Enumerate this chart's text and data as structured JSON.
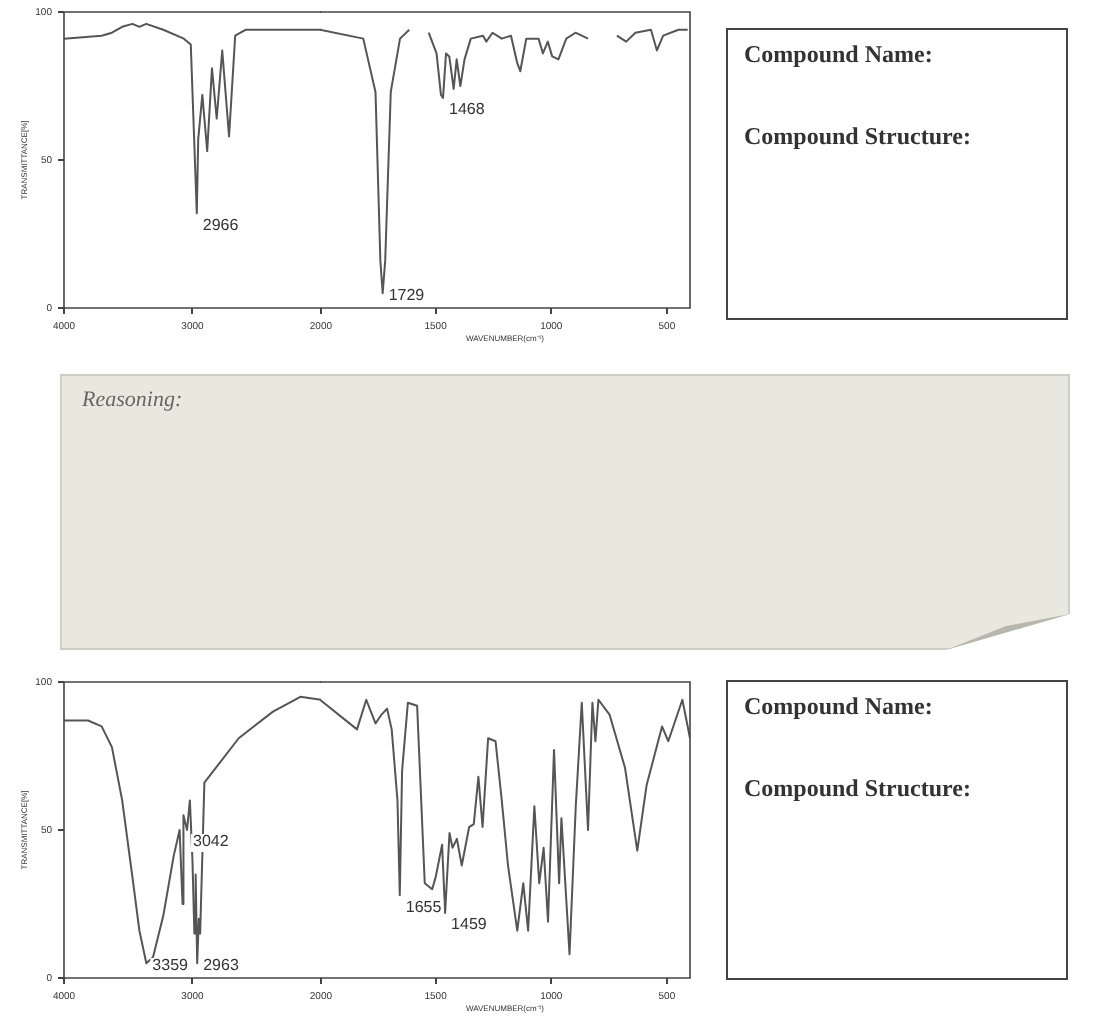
{
  "chart_data": [
    {
      "type": "line",
      "ylabel": "TRANSMITTANCE[%]",
      "xlim": [
        4000,
        2000
      ],
      "xticks": [
        4000,
        3000,
        2000
      ],
      "ylim": [
        0,
        100
      ],
      "yticks": [
        0,
        50,
        100
      ],
      "grid": false,
      "legend": false,
      "marker": "none",
      "line_style": "solid",
      "color": "#555555",
      "x": [
        4000,
        3707,
        3627,
        3547,
        3467,
        3413,
        3360,
        3227,
        3067,
        3013,
        2966,
        2955,
        2923,
        2885,
        2848,
        2811,
        2768,
        2715,
        2667,
        2587,
        2373,
        2000
      ],
      "values": [
        91,
        92,
        93,
        95,
        96,
        95,
        96,
        94,
        91,
        89,
        32,
        57,
        72,
        53,
        81,
        64,
        87,
        58,
        92,
        94,
        94,
        94
      ],
      "annotations": [
        {
          "text": "2966",
          "x": 2966,
          "y": 32
        }
      ]
    },
    {
      "type": "line",
      "xlabel": "WAVENUMBER(cm⁻¹)",
      "xlim": [
        2000,
        400
      ],
      "xticks": [
        1500,
        1000,
        500
      ],
      "ylim": [
        0,
        100
      ],
      "tick_labels": "x",
      "grid": false,
      "legend": false,
      "marker": "none",
      "line_style": "solid",
      "color": "#555555",
      "x": [
        2000,
        1813,
        1760,
        1739,
        1729,
        1718,
        1694,
        1654,
        1614,
        1570,
        1530,
        1496,
        1477,
        1468,
        1455,
        1441,
        1422,
        1409,
        1393,
        1375,
        1348,
        1295,
        1281,
        1254,
        1214,
        1174,
        1148,
        1134,
        1108,
        1055,
        1036,
        1015,
        996,
        969,
        935,
        895,
        841,
        780,
        716,
        676,
        636,
        569,
        543,
        516,
        450,
        410
      ],
      "values": [
        94,
        91,
        73,
        16,
        5,
        16,
        73,
        91,
        94,
        null,
        93,
        86,
        72,
        71,
        86,
        85,
        74,
        84,
        75,
        84,
        91,
        92,
        90,
        93,
        91,
        92,
        83,
        80,
        91,
        91,
        86,
        90,
        85,
        84,
        91,
        93,
        91,
        null,
        92,
        90,
        93,
        94,
        87,
        92,
        94,
        94
      ],
      "annotations": [
        {
          "text": "1729",
          "x": 1729,
          "y": 5
        },
        {
          "text": "1468",
          "x": 1468,
          "y": 71
        }
      ]
    },
    {
      "type": "other",
      "annotations": [
        "Compound Name:",
        "Compound Structure:"
      ]
    },
    {
      "type": "other",
      "annotations": [
        "Reasoning:"
      ]
    },
    {
      "type": "line",
      "ylabel": "TRANSMITTANCE[%]",
      "xlim": [
        4000,
        2000
      ],
      "xticks": [
        4000,
        3000,
        2000
      ],
      "ylim": [
        0,
        100
      ],
      "yticks": [
        0,
        50,
        100
      ],
      "grid": false,
      "legend": false,
      "marker": "none",
      "line_style": "solid",
      "color": "#555555",
      "x": [
        4000,
        3813,
        3707,
        3627,
        3547,
        3467,
        3413,
        3359,
        3307,
        3227,
        3147,
        3100,
        3077,
        3070,
        3042,
        3020,
        3000,
        2985,
        2975,
        2963,
        2950,
        2940,
        2907,
        2800,
        2640,
        2373,
        2160,
        2000
      ],
      "values": [
        87,
        87,
        85,
        78,
        60,
        34,
        16,
        5,
        7,
        21,
        41,
        50,
        25,
        55,
        50,
        60,
        40,
        15,
        35,
        5,
        20,
        15,
        66,
        72,
        81,
        90,
        95,
        94
      ],
      "annotations": [
        {
          "text": "3042",
          "x": 3042,
          "y": 50
        },
        {
          "text": "3359",
          "x": 3359,
          "y": 5
        },
        {
          "text": "2963",
          "x": 2963,
          "y": 5
        }
      ]
    },
    {
      "type": "line",
      "xlabel": "WAVENUMBER(cm⁻¹)",
      "xlim": [
        2000,
        400
      ],
      "xticks": [
        1500,
        1000,
        500
      ],
      "ylim": [
        0,
        100
      ],
      "tick_labels": "x",
      "grid": false,
      "legend": false,
      "marker": "none",
      "line_style": "solid",
      "color": "#555555",
      "x": [
        2000,
        1840,
        1800,
        1760,
        1734,
        1710,
        1690,
        1665,
        1655,
        1645,
        1620,
        1580,
        1547,
        1515,
        1500,
        1472,
        1459,
        1440,
        1427,
        1408,
        1387,
        1355,
        1335,
        1315,
        1297,
        1273,
        1241,
        1214,
        1187,
        1147,
        1121,
        1100,
        1073,
        1052,
        1033,
        1014,
        988,
        966,
        956,
        921,
        894,
        868,
        841,
        822,
        809,
        796,
        748,
        681,
        628,
        588,
        521,
        494,
        433,
        400
      ],
      "values": [
        94,
        84,
        94,
        86,
        89,
        91,
        84,
        60,
        28,
        70,
        93,
        92,
        32,
        30,
        34,
        45,
        22,
        49,
        44,
        47,
        38,
        51,
        52,
        68,
        51,
        81,
        80,
        60,
        38,
        16,
        32,
        16,
        58,
        32,
        44,
        19,
        77,
        32,
        54,
        8,
        58,
        93,
        50,
        93,
        80,
        94,
        89,
        71,
        43,
        65,
        85,
        80,
        94,
        81
      ],
      "annotations": [
        {
          "text": "1655",
          "x": 1655,
          "y": 28
        },
        {
          "text": "1459",
          "x": 1459,
          "y": 22
        }
      ]
    },
    {
      "type": "other",
      "annotations": [
        "Compound Name:",
        "Compound Structure:"
      ]
    }
  ]
}
